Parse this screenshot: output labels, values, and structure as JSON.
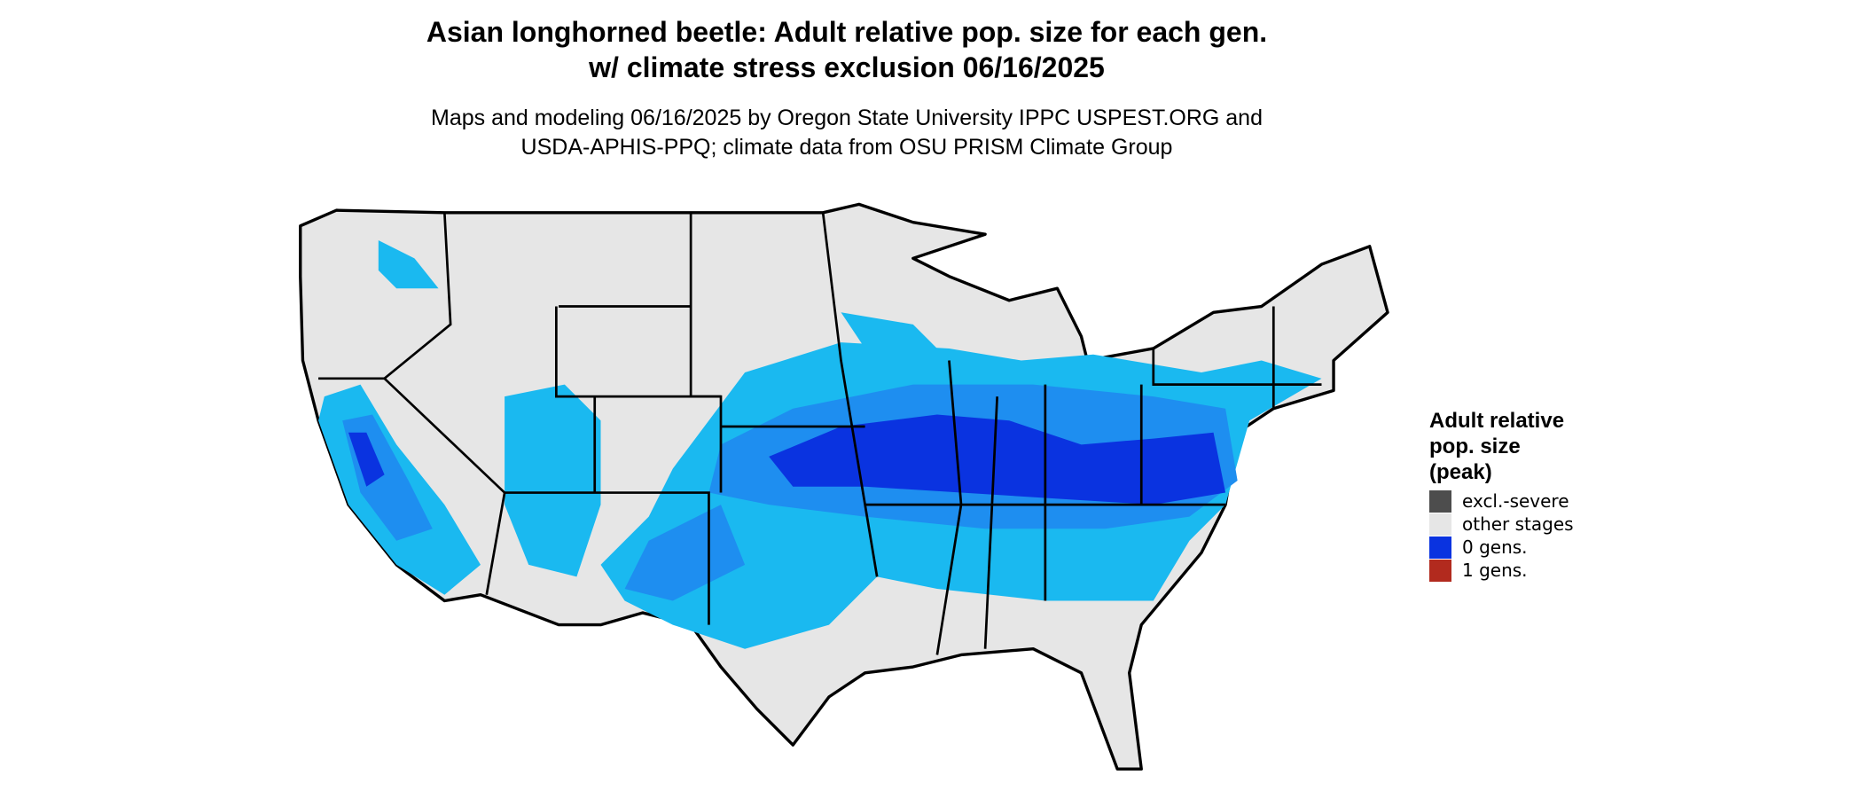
{
  "header": {
    "title_lines": [
      "Asian longhorned beetle: Adult relative pop. size for each gen.",
      "w/ climate stress exclusion 06/16/2025"
    ],
    "subtitle_lines": [
      "Maps and modeling 06/16/2025 by Oregon State University IPPC USPEST.ORG and",
      "USDA-APHIS-PPQ; climate data from OSU PRISM Climate Group"
    ]
  },
  "legend": {
    "title_lines": [
      "Adult relative",
      "pop. size",
      "(peak)"
    ],
    "items": [
      {
        "label": "excl.-severe",
        "color": "#4d4d4d"
      },
      {
        "label": "other stages",
        "color": "#e6e6e6"
      },
      {
        "label": "0 gens.",
        "color": "#0a33e0"
      },
      {
        "label": "1 gens.",
        "color": "#b22a1e"
      }
    ]
  }
}
